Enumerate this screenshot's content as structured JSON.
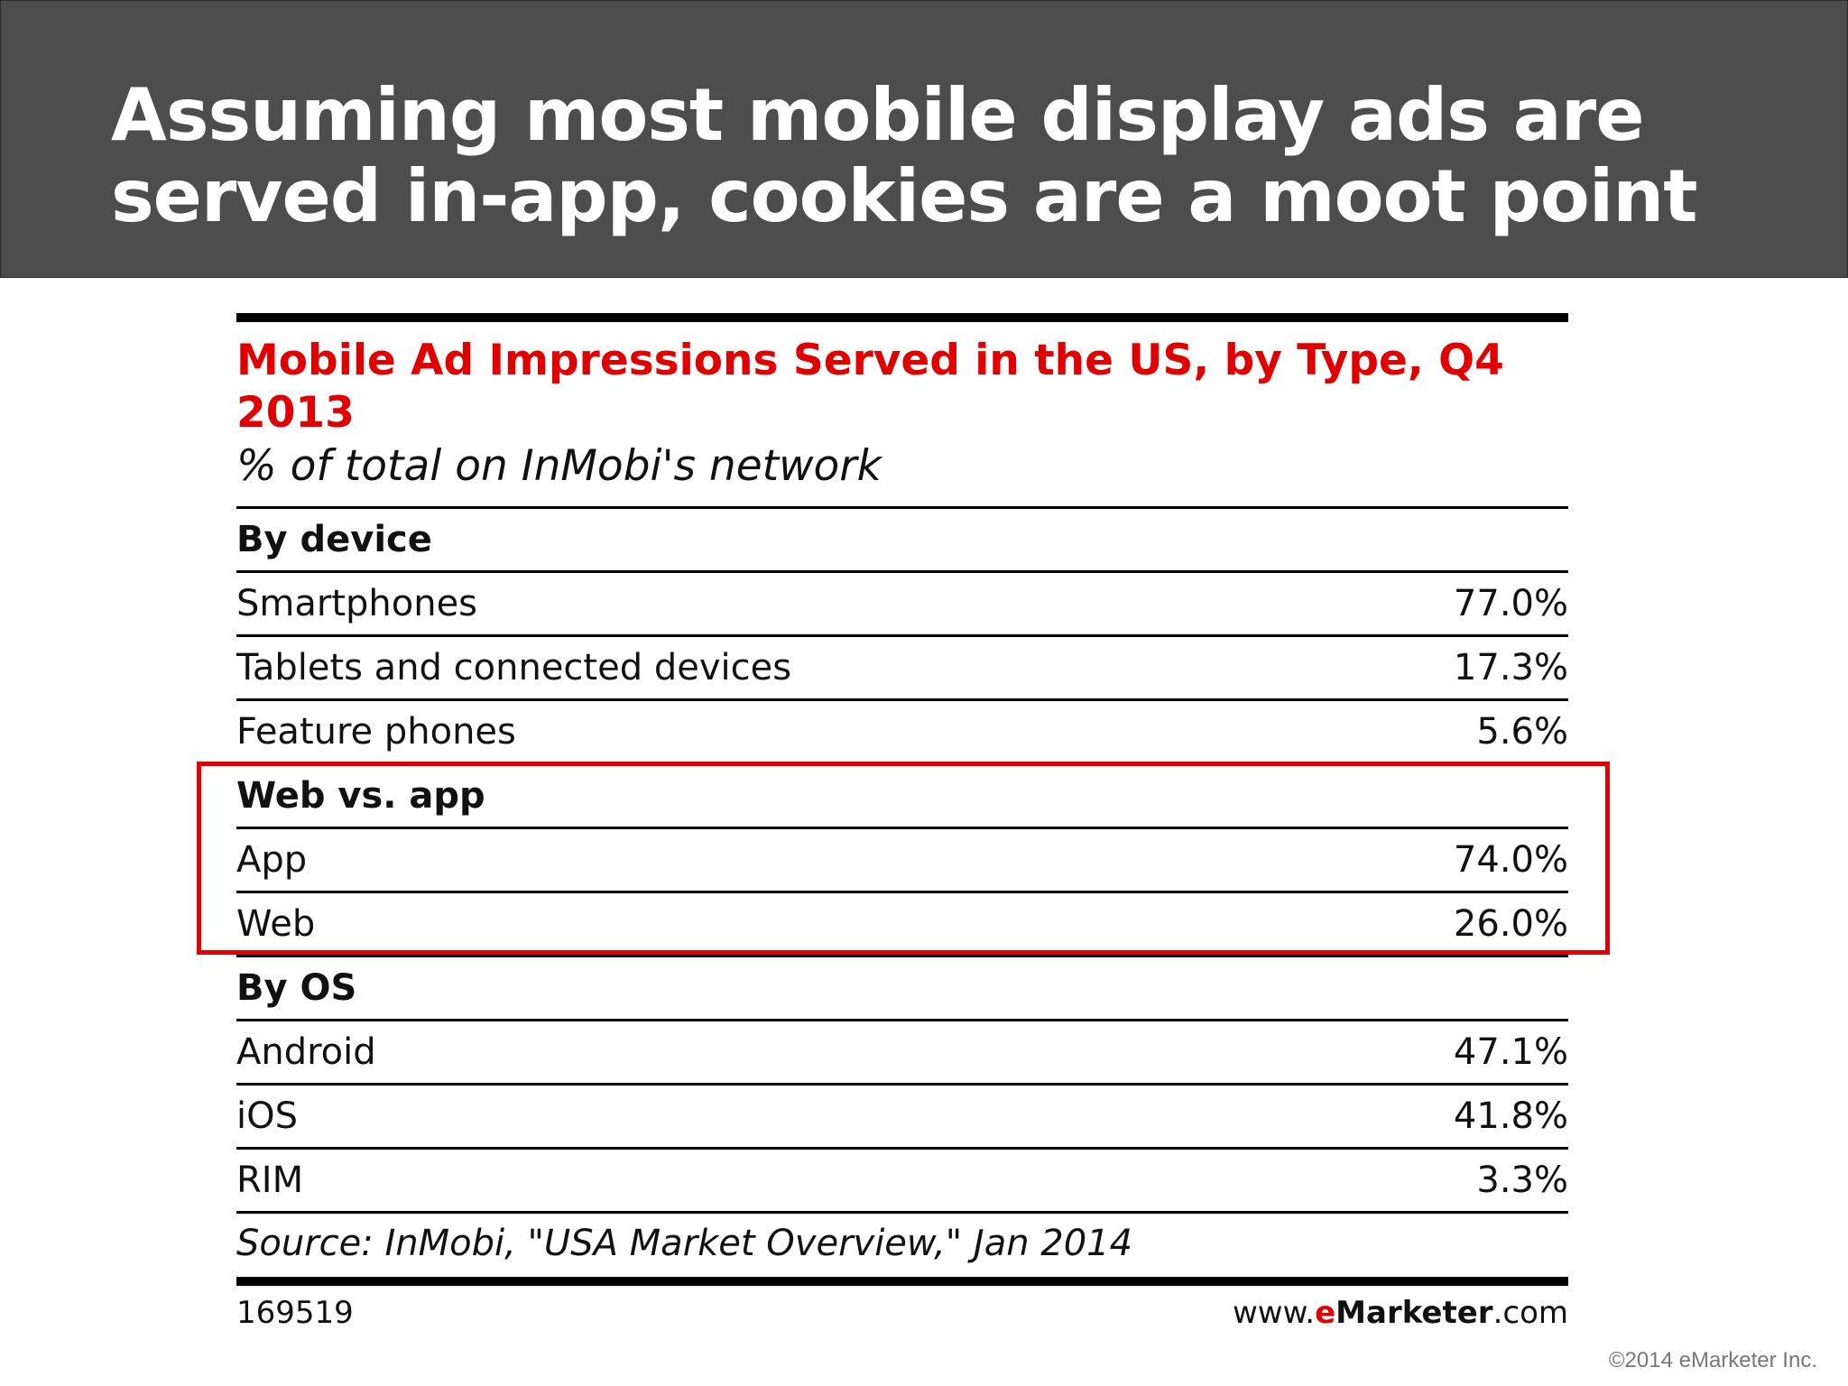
{
  "slide": {
    "title": "Assuming most mobile display ads are served in-app, cookies are a moot point",
    "copyright": "©2014 eMarketer Inc."
  },
  "chart_data": {
    "type": "table",
    "title": "Mobile Ad Impressions Served in the US, by Type, Q4 2013",
    "subtitle": "% of total on InMobi's network",
    "sections": [
      {
        "heading": "By device",
        "rows": [
          {
            "label": "Smartphones",
            "value": "77.0%"
          },
          {
            "label": "Tablets and connected devices",
            "value": "17.3%"
          },
          {
            "label": "Feature phones",
            "value": "5.6%"
          }
        ]
      },
      {
        "heading": "Web vs. app",
        "rows": [
          {
            "label": "App",
            "value": "74.0%"
          },
          {
            "label": "Web",
            "value": "26.0%"
          }
        ]
      },
      {
        "heading": "By OS",
        "rows": [
          {
            "label": "Android",
            "value": "47.1%"
          },
          {
            "label": "iOS",
            "value": "41.8%"
          },
          {
            "label": "RIM",
            "value": "3.3%"
          }
        ]
      }
    ],
    "source": "Source: InMobi, \"USA Market Overview,\" Jan 2014",
    "chart_id": "169519",
    "brand": {
      "prefix": "www.",
      "name_e": "e",
      "name_rest": "Marketer",
      "suffix": ".com"
    },
    "highlight_color": "#e10000"
  }
}
